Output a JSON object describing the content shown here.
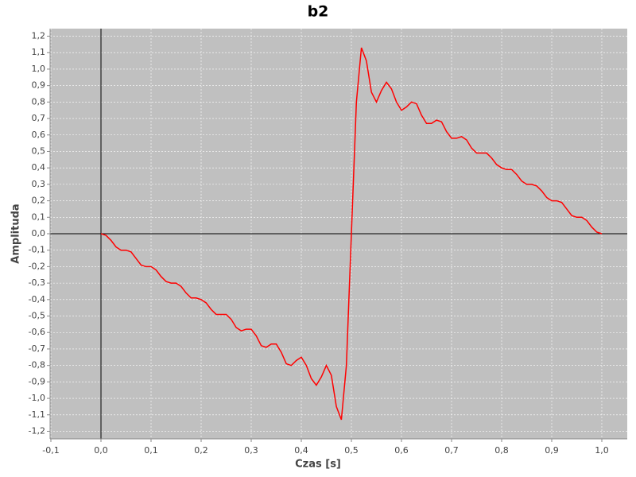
{
  "chart_data": {
    "type": "line",
    "title": "b2",
    "x_label": "Czas [s]",
    "y_label": "Amplituda",
    "x": [
      0,
      0.01,
      0.02,
      0.03,
      0.04,
      0.05,
      0.06,
      0.07,
      0.08,
      0.09,
      0.1,
      0.11,
      0.12,
      0.13,
      0.14,
      0.15,
      0.16,
      0.17,
      0.18,
      0.19,
      0.2,
      0.21,
      0.22,
      0.23,
      0.24,
      0.25,
      0.26,
      0.27,
      0.28,
      0.29,
      0.3,
      0.31,
      0.32,
      0.33,
      0.34,
      0.35,
      0.36,
      0.37,
      0.38,
      0.39,
      0.4,
      0.41,
      0.42,
      0.43,
      0.44,
      0.45,
      0.46,
      0.47,
      0.48,
      0.49,
      0.5,
      0.51,
      0.52,
      0.53,
      0.54,
      0.55,
      0.56,
      0.57,
      0.58,
      0.59,
      0.6,
      0.61,
      0.62,
      0.63,
      0.64,
      0.65,
      0.66,
      0.67,
      0.68,
      0.69,
      0.7,
      0.71,
      0.72,
      0.73,
      0.74,
      0.75,
      0.76,
      0.77,
      0.78,
      0.79,
      0.8,
      0.81,
      0.82,
      0.83,
      0.84,
      0.85,
      0.86,
      0.87,
      0.88,
      0.89,
      0.9,
      0.91,
      0.92,
      0.93,
      0.94,
      0.95,
      0.96,
      0.97,
      0.98,
      0.99,
      1.0
    ],
    "series": [
      {
        "name": "b2",
        "color": "#ff0000",
        "values": [
          0,
          -0.01,
          -0.04,
          -0.08,
          -0.1,
          -0.1,
          -0.11,
          -0.15,
          -0.19,
          -0.2,
          -0.2,
          -0.22,
          -0.26,
          -0.29,
          -0.3,
          -0.3,
          -0.32,
          -0.36,
          -0.39,
          -0.39,
          -0.4,
          -0.42,
          -0.46,
          -0.49,
          -0.49,
          -0.49,
          -0.52,
          -0.57,
          -0.59,
          -0.58,
          -0.58,
          -0.62,
          -0.68,
          -0.69,
          -0.67,
          -0.67,
          -0.72,
          -0.79,
          -0.8,
          -0.77,
          -0.75,
          -0.8,
          -0.88,
          -0.92,
          -0.87,
          -0.8,
          -0.86,
          -1.05,
          -1.13,
          -0.8,
          0,
          0.8,
          1.13,
          1.05,
          0.86,
          0.8,
          0.87,
          0.92,
          0.88,
          0.8,
          0.75,
          0.77,
          0.8,
          0.79,
          0.72,
          0.67,
          0.67,
          0.69,
          0.68,
          0.62,
          0.58,
          0.58,
          0.59,
          0.57,
          0.52,
          0.49,
          0.49,
          0.49,
          0.46,
          0.42,
          0.4,
          0.39,
          0.39,
          0.36,
          0.32,
          0.3,
          0.3,
          0.29,
          0.26,
          0.22,
          0.2,
          0.2,
          0.19,
          0.15,
          0.11,
          0.1,
          0.1,
          0.08,
          0.04,
          0.01,
          0
        ]
      }
    ],
    "xlim": [
      -0.1016,
      1.0508
    ],
    "xticks": [
      {
        "value": -0.1,
        "label": "-0,1"
      },
      {
        "value": 0,
        "label": "0,0"
      },
      {
        "value": 0.1,
        "label": "0,1"
      },
      {
        "value": 0.2,
        "label": "0,2"
      },
      {
        "value": 0.3,
        "label": "0,3"
      },
      {
        "value": 0.4,
        "label": "0,4"
      },
      {
        "value": 0.5,
        "label": "0,5"
      },
      {
        "value": 0.6,
        "label": "0,6"
      },
      {
        "value": 0.7,
        "label": "0,7"
      },
      {
        "value": 0.8,
        "label": "0,8"
      },
      {
        "value": 0.9,
        "label": "0,9"
      },
      {
        "value": 1.0,
        "label": "1,0"
      }
    ],
    "ylim": [
      -1.246,
      1.246
    ],
    "yticks": [
      {
        "value": -1.2,
        "label": "-1,2"
      },
      {
        "value": -1.1,
        "label": "-1,1"
      },
      {
        "value": -1.0,
        "label": "-1,0"
      },
      {
        "value": -0.9,
        "label": "-0,9"
      },
      {
        "value": -0.8,
        "label": "-0,8"
      },
      {
        "value": -0.7,
        "label": "-0,7"
      },
      {
        "value": -0.6,
        "label": "-0,6"
      },
      {
        "value": -0.5,
        "label": "-0,5"
      },
      {
        "value": -0.4,
        "label": "-0,4"
      },
      {
        "value": -0.3,
        "label": "-0,3"
      },
      {
        "value": -0.2,
        "label": "-0,2"
      },
      {
        "value": -0.1,
        "label": "-0,1"
      },
      {
        "value": 0,
        "label": "0,0"
      },
      {
        "value": 0.1,
        "label": "0,1"
      },
      {
        "value": 0.2,
        "label": "0,2"
      },
      {
        "value": 0.3,
        "label": "0,3"
      },
      {
        "value": 0.4,
        "label": "0,4"
      },
      {
        "value": 0.5,
        "label": "0,5"
      },
      {
        "value": 0.6,
        "label": "0,6"
      },
      {
        "value": 0.7,
        "label": "0,7"
      },
      {
        "value": 0.8,
        "label": "0,8"
      },
      {
        "value": 0.9,
        "label": "0,9"
      },
      {
        "value": 1.0,
        "label": "1,0"
      },
      {
        "value": 1.1,
        "label": "1,1"
      },
      {
        "value": 1.2,
        "label": "1,2"
      }
    ],
    "grid": true
  }
}
